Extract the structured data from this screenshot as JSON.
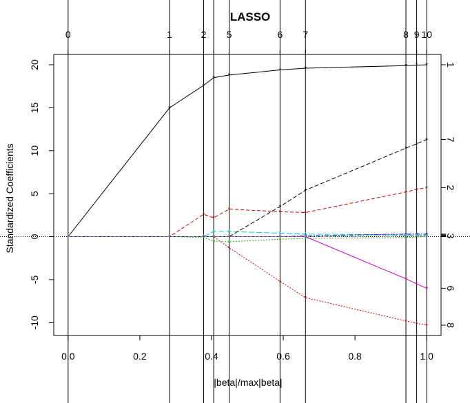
{
  "chart_data": {
    "type": "line",
    "title": "LASSO",
    "xlabel": "|beta|/max|beta|",
    "ylabel": "Standardized Coefficients",
    "xlim": [
      -0.04,
      1.04
    ],
    "ylim": [
      -11.5,
      21.2
    ],
    "x_ticks": [
      "0.0",
      "0.2",
      "0.4",
      "0.6",
      "0.8",
      "1.0"
    ],
    "x_tick_values": [
      0,
      0.2,
      0.4,
      0.6,
      0.8,
      1.0
    ],
    "y_ticks": [
      "-10",
      "-5",
      "0",
      "5",
      "10",
      "15",
      "20"
    ],
    "y_tick_values": [
      -10,
      -5,
      0,
      5,
      10,
      15,
      20
    ],
    "steps": {
      "x": [
        0.0,
        0.283,
        0.378,
        0.406,
        0.449,
        0.591,
        0.662,
        0.942,
        0.972,
        1.0
      ],
      "top_labels": [
        "0",
        "1",
        "2",
        "",
        "5",
        "6",
        "7",
        "8",
        "9",
        "10"
      ]
    },
    "series": [
      {
        "color": "#000000",
        "dash": "",
        "right_label": "1",
        "values": [
          0,
          15.0,
          17.6,
          18.5,
          18.8,
          19.4,
          19.6,
          19.9,
          19.95,
          20.0
        ]
      },
      {
        "color": "#cc0000",
        "dash": "5,3",
        "right_label": "2",
        "values": [
          0,
          0,
          2.6,
          2.2,
          3.2,
          2.9,
          2.8,
          5.2,
          5.5,
          5.7
        ]
      },
      {
        "color": "#000000",
        "dash": "1,3",
        "right_label": "3",
        "values": [
          0,
          0,
          0,
          0,
          0,
          0,
          0,
          0.1,
          0.1,
          0.1
        ]
      },
      {
        "color": "#22aa22",
        "dash": "2,2",
        "right_label": "",
        "values": [
          0,
          0,
          -0.1,
          -0.5,
          -0.6,
          -0.3,
          -0.2,
          -0.1,
          -0.05,
          0
        ]
      },
      {
        "color": "#00cccc",
        "dash": "8,3",
        "right_label": "",
        "values": [
          0,
          0,
          0,
          0.6,
          0.6,
          0.4,
          0.3,
          0.2,
          0.2,
          0.2
        ]
      },
      {
        "color": "#cc00cc",
        "dash": "",
        "right_label": "6",
        "values": [
          0,
          0,
          0,
          0,
          0,
          0,
          0,
          -4.9,
          -5.5,
          -6.0
        ]
      },
      {
        "color": "#000000",
        "dash": "6,3",
        "right_label": "7",
        "values": [
          0,
          0,
          0,
          0,
          0,
          3.5,
          5.4,
          10.3,
          10.8,
          11.3
        ]
      },
      {
        "color": "#cc0000",
        "dash": "2,2",
        "right_label": "8",
        "values": [
          0,
          0,
          0,
          0,
          -1.3,
          -5.2,
          -7.1,
          -9.8,
          -10.1,
          -10.3
        ]
      },
      {
        "color": "#2222cc",
        "dash": "6,2,2,2",
        "right_label": "",
        "values": [
          0,
          0,
          0,
          0,
          0,
          0,
          0.1,
          0.3,
          0.3,
          0.3
        ]
      },
      {
        "color": "#888888",
        "dash": "3,3",
        "right_label": "",
        "values": [
          0,
          0,
          0,
          0,
          0,
          0,
          0,
          0.1,
          0.1,
          0.1
        ]
      }
    ]
  }
}
